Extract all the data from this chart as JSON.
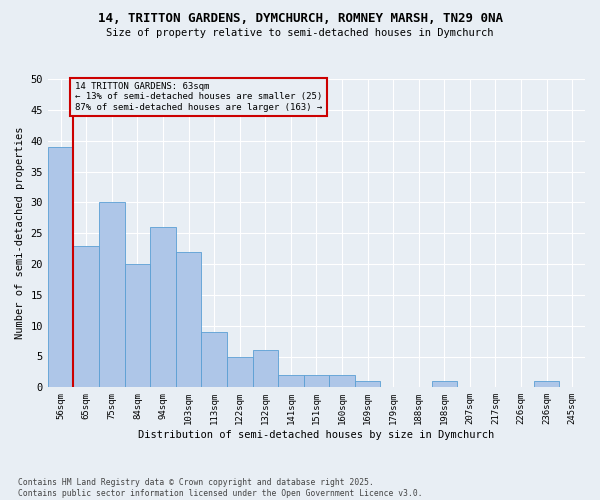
{
  "title_line1": "14, TRITTON GARDENS, DYMCHURCH, ROMNEY MARSH, TN29 0NA",
  "title_line2": "Size of property relative to semi-detached houses in Dymchurch",
  "xlabel": "Distribution of semi-detached houses by size in Dymchurch",
  "ylabel": "Number of semi-detached properties",
  "categories": [
    "56sqm",
    "65sqm",
    "75sqm",
    "84sqm",
    "94sqm",
    "103sqm",
    "113sqm",
    "122sqm",
    "132sqm",
    "141sqm",
    "151sqm",
    "160sqm",
    "169sqm",
    "179sqm",
    "188sqm",
    "198sqm",
    "207sqm",
    "217sqm",
    "226sqm",
    "236sqm",
    "245sqm"
  ],
  "values": [
    39,
    23,
    30,
    20,
    26,
    22,
    9,
    5,
    6,
    2,
    2,
    2,
    1,
    0,
    0,
    1,
    0,
    0,
    0,
    1,
    0
  ],
  "bar_color": "#aec6e8",
  "bar_edge_color": "#5a9fd4",
  "background_color": "#e8eef4",
  "annotation_box_color": "#cc0000",
  "property_line_color": "#cc0000",
  "property_index": 1,
  "annotation_title": "14 TRITTON GARDENS: 63sqm",
  "annotation_line1": "← 13% of semi-detached houses are smaller (25)",
  "annotation_line2": "87% of semi-detached houses are larger (163) →",
  "ylim": [
    0,
    50
  ],
  "yticks": [
    0,
    5,
    10,
    15,
    20,
    25,
    30,
    35,
    40,
    45,
    50
  ],
  "footer_line1": "Contains HM Land Registry data © Crown copyright and database right 2025.",
  "footer_line2": "Contains public sector information licensed under the Open Government Licence v3.0."
}
